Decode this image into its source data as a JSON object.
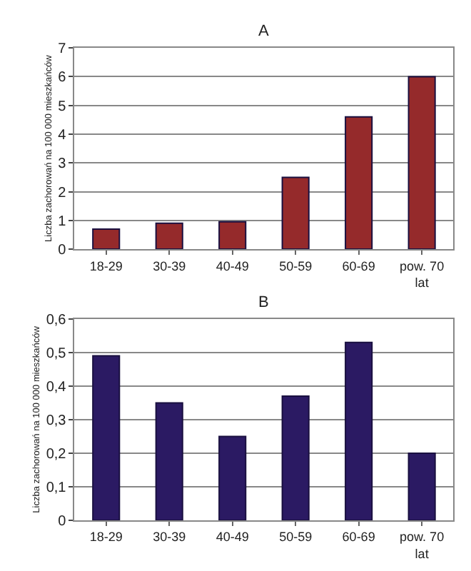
{
  "chart_data": [
    {
      "type": "bar",
      "title": "A",
      "ylabel": "Liczba zachorowań na 100 000 mieszkańców",
      "categories": [
        "18-29",
        "30-39",
        "40-49",
        "50-59",
        "60-69",
        "pow. 70 lat"
      ],
      "values": [
        0.7,
        0.9,
        0.95,
        2.5,
        4.6,
        6
      ],
      "color": "#952a2b",
      "ylim": [
        0,
        7
      ],
      "yticks": [
        0,
        1,
        2,
        3,
        4,
        5,
        6,
        7
      ],
      "grid": "y"
    },
    {
      "type": "bar",
      "title": "B",
      "ylabel": "Liczba zachorowań na 100 000 mieszkańców",
      "categories": [
        "18-29",
        "30-39",
        "40-49",
        "50-59",
        "60-69",
        "pow. 70 lat"
      ],
      "values": [
        0.49,
        0.35,
        0.25,
        0.37,
        0.53,
        0.2
      ],
      "color": "#2b1a63",
      "ylim": [
        0,
        0.6
      ],
      "yticks": [
        0,
        {
          "value": 0.1,
          "label": "0,1"
        },
        {
          "value": 0.2,
          "label": "0,2"
        },
        {
          "value": 0.3,
          "label": "0,3"
        },
        {
          "value": 0.4,
          "label": "0,4"
        },
        {
          "value": 0.5,
          "label": "0,5"
        },
        {
          "value": 0.6,
          "label": "0,6"
        }
      ],
      "grid": "y"
    }
  ]
}
